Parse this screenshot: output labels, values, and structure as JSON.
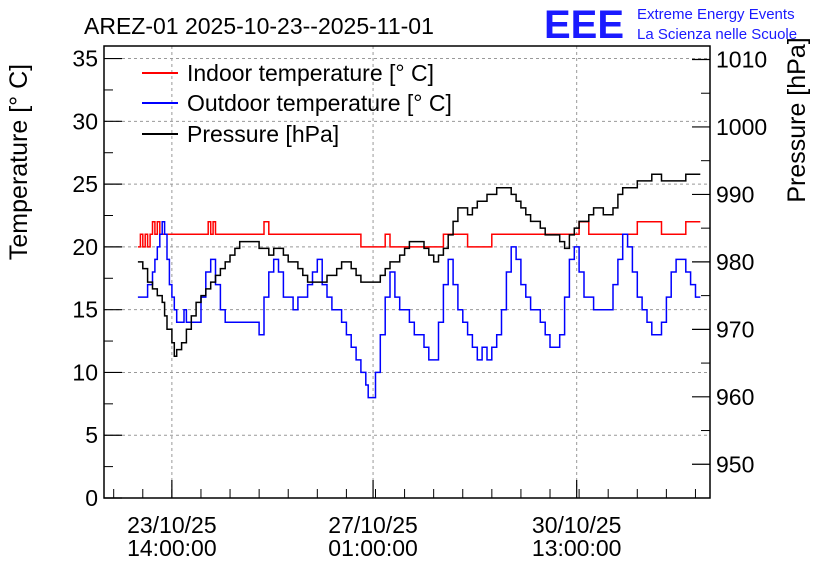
{
  "chart_data": {
    "type": "line",
    "title": "AREZ-01 2025-10-23--2025-11-01",
    "logo": {
      "mark": "EEE",
      "line1": "Extreme Energy Events",
      "line2": "La Scienza nelle Scuole",
      "color": "#1a1aff"
    },
    "left_axis": {
      "label": "Temperature [° C]",
      "range": [
        0,
        36
      ],
      "ticks": [
        0,
        5,
        10,
        15,
        20,
        25,
        30,
        35
      ],
      "tick_labels": [
        "0",
        "5",
        "10",
        "15",
        "20",
        "25",
        "30",
        "35"
      ]
    },
    "right_axis": {
      "label": "Pressure [hPa]",
      "range": [
        945,
        1012
      ],
      "ticks": [
        950,
        960,
        970,
        980,
        990,
        1000,
        1010
      ],
      "tick_labels": [
        "950",
        "960",
        "970",
        "980",
        "990",
        "1000",
        "1010"
      ]
    },
    "x_axis": {
      "unit": "hours since 2025-10-22 00:00",
      "range": [
        10,
        260
      ],
      "ticks": [
        {
          "x": 38,
          "line1": "23/10/25",
          "line2": "14:00:00"
        },
        {
          "x": 121,
          "line1": "27/10/25",
          "line2": "01:00:00"
        },
        {
          "x": 205,
          "line1": "30/10/25",
          "line2": "13:00:00"
        }
      ]
    },
    "grid": true,
    "legend_position": "top-left",
    "series": [
      {
        "name": "Indoor temperature [° C]",
        "axis": "left",
        "color": "#ff0000",
        "x": [
          24,
          25,
          26,
          27,
          28,
          29,
          30,
          31,
          32,
          33,
          34,
          38,
          40,
          44,
          48,
          50,
          52,
          53,
          54,
          55,
          56,
          58,
          62,
          66,
          70,
          72,
          74,
          76,
          78,
          84,
          90,
          100,
          104,
          110,
          114,
          116,
          120,
          124,
          126,
          128,
          134,
          140,
          146,
          150,
          154,
          160,
          166,
          170,
          180,
          190,
          196,
          200,
          206,
          210,
          220,
          230,
          240,
          250,
          256
        ],
        "y": [
          20,
          21,
          20,
          21,
          20,
          21,
          22,
          21,
          22,
          21,
          21,
          21,
          21,
          21,
          21,
          21,
          21,
          22,
          21,
          22,
          21,
          21,
          21,
          21,
          21,
          21,
          21,
          22,
          21,
          21,
          21,
          21,
          21,
          21,
          21,
          20,
          20,
          20,
          21,
          20,
          20,
          20,
          20,
          21,
          21,
          20,
          20,
          21,
          21,
          21,
          21,
          21,
          22,
          21,
          21,
          22,
          21,
          22,
          22
        ]
      },
      {
        "name": "Outdoor temperature [° C]",
        "axis": "left",
        "color": "#0000ff",
        "x": [
          24,
          26,
          28,
          30,
          31,
          32,
          33,
          34,
          35,
          36,
          37,
          38,
          39,
          40,
          41,
          43,
          44,
          46,
          48,
          50,
          52,
          54,
          56,
          58,
          60,
          62,
          66,
          70,
          74,
          76,
          78,
          80,
          82,
          84,
          86,
          88,
          90,
          92,
          94,
          96,
          98,
          100,
          102,
          104,
          106,
          108,
          110,
          112,
          114,
          116,
          118,
          119,
          120,
          122,
          124,
          126,
          128,
          130,
          132,
          134,
          136,
          138,
          140,
          142,
          144,
          146,
          148,
          150,
          152,
          154,
          156,
          158,
          160,
          162,
          164,
          166,
          168,
          170,
          172,
          174,
          176,
          178,
          180,
          182,
          184,
          186,
          188,
          190,
          192,
          194,
          196,
          198,
          200,
          202,
          204,
          206,
          208,
          210,
          212,
          214,
          216,
          218,
          220,
          222,
          224,
          226,
          228,
          230,
          232,
          234,
          236,
          238,
          240,
          242,
          244,
          246,
          248,
          250,
          252,
          254,
          256
        ],
        "y": [
          16,
          16,
          17,
          18,
          19,
          20,
          21,
          22,
          21,
          19,
          17,
          16,
          15,
          14,
          14,
          15,
          14,
          14,
          14,
          16,
          18,
          19,
          17,
          15,
          14,
          14,
          14,
          14,
          13,
          16,
          18,
          19,
          18,
          16,
          16,
          15,
          16,
          16,
          17,
          18,
          19,
          17,
          16,
          15,
          15,
          14,
          13,
          12,
          11,
          10,
          9,
          8,
          8,
          10,
          13,
          16,
          18,
          16,
          15,
          15,
          14,
          13,
          13,
          12,
          11,
          11,
          14,
          17,
          19,
          17,
          15,
          14,
          13,
          12,
          11,
          12,
          11,
          12,
          13,
          15,
          18,
          20,
          19,
          17,
          16,
          15,
          15,
          14,
          13,
          12,
          12,
          13,
          16,
          19,
          20,
          18,
          16,
          16,
          15,
          15,
          15,
          15,
          17,
          19,
          21,
          20,
          18,
          16,
          15,
          14,
          13,
          13,
          14,
          16,
          18,
          19,
          19,
          18,
          17,
          16,
          16
        ]
      },
      {
        "name": "Pressure [hPa]",
        "axis": "right",
        "color": "#000000",
        "x": [
          24,
          26,
          28,
          30,
          32,
          34,
          35,
          36,
          38,
          39,
          40,
          42,
          44,
          46,
          48,
          50,
          52,
          54,
          56,
          58,
          60,
          62,
          64,
          66,
          68,
          70,
          72,
          74,
          76,
          78,
          80,
          82,
          84,
          86,
          88,
          90,
          92,
          94,
          96,
          98,
          100,
          102,
          104,
          106,
          108,
          110,
          112,
          114,
          116,
          118,
          120,
          122,
          124,
          126,
          128,
          130,
          132,
          134,
          136,
          138,
          140,
          142,
          144,
          146,
          148,
          150,
          152,
          154,
          156,
          158,
          160,
          162,
          164,
          166,
          168,
          170,
          172,
          174,
          176,
          178,
          180,
          182,
          184,
          186,
          188,
          190,
          192,
          194,
          196,
          198,
          200,
          202,
          204,
          206,
          208,
          210,
          212,
          214,
          216,
          218,
          220,
          222,
          224,
          226,
          228,
          230,
          232,
          234,
          236,
          238,
          240,
          242,
          244,
          246,
          248,
          250,
          252,
          254,
          256
        ],
        "y": [
          980,
          979,
          977,
          976,
          975,
          974,
          972,
          970,
          968,
          966,
          967,
          968,
          970,
          972,
          974,
          975,
          976,
          977,
          978,
          979,
          980,
          981,
          982,
          983,
          983,
          983,
          983,
          982,
          982,
          981,
          982,
          982,
          981,
          980,
          980,
          979,
          978,
          977,
          977,
          977,
          977,
          978,
          978,
          979,
          980,
          980,
          979,
          978,
          977,
          977,
          977,
          977,
          978,
          979,
          980,
          980,
          981,
          982,
          983,
          983,
          983,
          982,
          981,
          980,
          981,
          982,
          984,
          986,
          988,
          988,
          987,
          988,
          989,
          989,
          990,
          990,
          991,
          991,
          991,
          990,
          989,
          988,
          987,
          986,
          986,
          985,
          984,
          984,
          984,
          983,
          982,
          984,
          985,
          986,
          986,
          987,
          988,
          988,
          987,
          987,
          988,
          990,
          991,
          991,
          991,
          992,
          992,
          992,
          993,
          993,
          992,
          992,
          992,
          992,
          992,
          993,
          993,
          993,
          993
        ]
      }
    ]
  }
}
